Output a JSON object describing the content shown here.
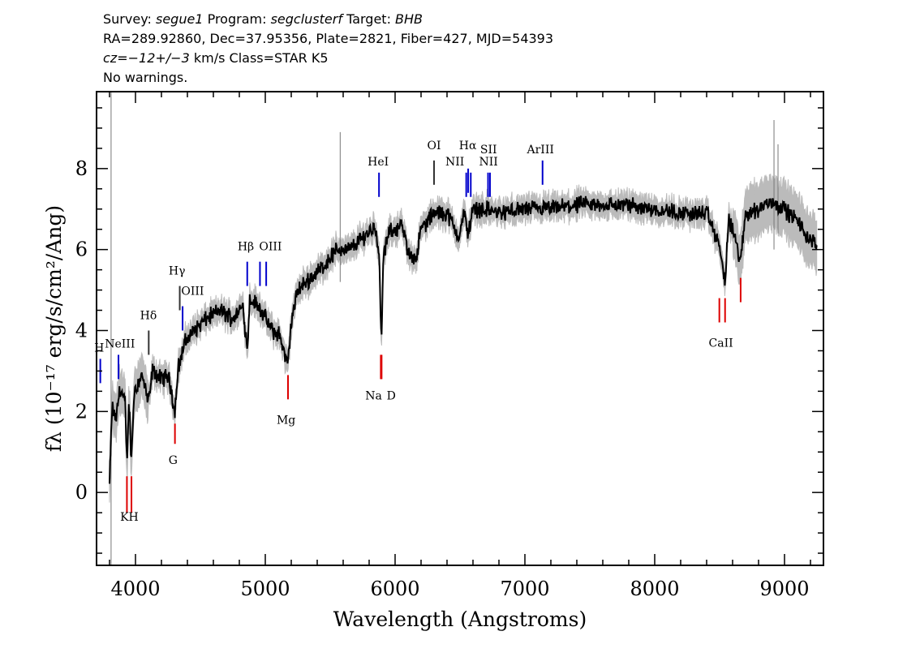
{
  "header": {
    "survey_label": "Survey:",
    "survey": "segue1",
    "program_label": "Program:",
    "program": "segclusterf",
    "target_label": "Target:",
    "target": "BHB",
    "line2": "RA=289.92860, Dec=37.95356, Plate=2821, Fiber=427, MJD=54393",
    "cz_label": "cz=",
    "cz_value": "−12+/−3",
    "cz_rest": " km/s Class=STAR K5",
    "warnings": "No warnings."
  },
  "chart_data": {
    "type": "line",
    "xlabel": "Wavelength (Angstroms)",
    "ylabel": "fλ (10⁻¹⁷ erg/s/cm²/Ang)",
    "xlim": [
      3700,
      9300
    ],
    "ylim": [
      -1.8,
      9.9
    ],
    "x_ticks": [
      4000,
      5000,
      6000,
      7000,
      8000,
      9000
    ],
    "y_ticks": [
      0,
      2,
      4,
      6,
      8
    ],
    "grid": false,
    "colors": {
      "flux": "#000000",
      "error": "#bbbbbb",
      "emission": "#0000cc",
      "absorption": "#dd0000",
      "sky": "#777777"
    },
    "flux_knots": [
      [
        3800,
        0.2
      ],
      [
        3820,
        2.1
      ],
      [
        3850,
        1.8
      ],
      [
        3880,
        2.6
      ],
      [
        3900,
        2.4
      ],
      [
        3920,
        2.2
      ],
      [
        3934,
        0.7
      ],
      [
        3950,
        2.3
      ],
      [
        3968,
        0.8
      ],
      [
        3990,
        2.5
      ],
      [
        4050,
        2.9
      ],
      [
        4101,
        2.2
      ],
      [
        4130,
        3.0
      ],
      [
        4200,
        2.8
      ],
      [
        4250,
        2.9
      ],
      [
        4280,
        2.5
      ],
      [
        4300,
        1.9
      ],
      [
        4330,
        3.1
      ],
      [
        4380,
        3.7
      ],
      [
        4450,
        4.0
      ],
      [
        4550,
        4.3
      ],
      [
        4650,
        4.5
      ],
      [
        4750,
        4.3
      ],
      [
        4830,
        4.6
      ],
      [
        4861,
        3.5
      ],
      [
        4880,
        4.8
      ],
      [
        4950,
        4.6
      ],
      [
        5050,
        4.0
      ],
      [
        5110,
        3.9
      ],
      [
        5150,
        3.4
      ],
      [
        5172,
        3.1
      ],
      [
        5200,
        4.2
      ],
      [
        5250,
        5.0
      ],
      [
        5350,
        5.3
      ],
      [
        5450,
        5.6
      ],
      [
        5550,
        6.0
      ],
      [
        5650,
        6.0
      ],
      [
        5750,
        6.3
      ],
      [
        5850,
        6.6
      ],
      [
        5880,
        5.6
      ],
      [
        5893,
        3.7
      ],
      [
        5910,
        5.8
      ],
      [
        5950,
        6.4
      ],
      [
        6050,
        6.6
      ],
      [
        6103,
        5.9
      ],
      [
        6162,
        5.8
      ],
      [
        6200,
        6.5
      ],
      [
        6300,
        6.9
      ],
      [
        6400,
        6.9
      ],
      [
        6495,
        6.3
      ],
      [
        6530,
        6.9
      ],
      [
        6563,
        6.4
      ],
      [
        6600,
        7.0
      ],
      [
        6700,
        7.0
      ],
      [
        6800,
        6.9
      ],
      [
        7000,
        7.0
      ],
      [
        7200,
        7.0
      ],
      [
        7400,
        7.1
      ],
      [
        7600,
        7.1
      ],
      [
        7800,
        7.1
      ],
      [
        8000,
        7.0
      ],
      [
        8200,
        6.9
      ],
      [
        8400,
        6.9
      ],
      [
        8498,
        6.1
      ],
      [
        8542,
        5.2
      ],
      [
        8570,
        6.7
      ],
      [
        8600,
        6.5
      ],
      [
        8662,
        5.7
      ],
      [
        8700,
        6.9
      ],
      [
        8800,
        7.0
      ],
      [
        8900,
        7.2
      ],
      [
        9000,
        7.0
      ],
      [
        9100,
        6.7
      ],
      [
        9200,
        6.2
      ],
      [
        9250,
        6.1
      ]
    ],
    "emission_lines": [
      {
        "label": "H",
        "x": 3729
      },
      {
        "label": "NeIII",
        "x": 3869
      },
      {
        "label": "Hδ",
        "x": 4102
      },
      {
        "label": "Hγ",
        "x": 4341
      },
      {
        "label": "OIII",
        "x": 4363
      },
      {
        "label": "Hβ",
        "x": 4861
      },
      {
        "label": "OIII",
        "x": 4959
      },
      {
        "label": "OIII",
        "x": 5007
      },
      {
        "label": "HeI",
        "x": 5876
      },
      {
        "label": "OI",
        "x": 6300
      },
      {
        "label": "NII",
        "x": 6548
      },
      {
        "label": "Hα",
        "x": 6563
      },
      {
        "label": "NII",
        "x": 6583
      },
      {
        "label": "SII",
        "x": 6716
      },
      {
        "label": "SII",
        "x": 6731
      },
      {
        "label": "ArIII",
        "x": 7136
      }
    ],
    "absorption_lines": [
      {
        "label": "K",
        "x": 3934
      },
      {
        "label": "H",
        "x": 3969
      },
      {
        "label": "G",
        "x": 4304
      },
      {
        "label": "Mg",
        "x": 5175
      },
      {
        "label": "Na",
        "x": 5890
      },
      {
        "label": "D",
        "x": 5896
      },
      {
        "label": "CaII",
        "x": 8498
      },
      {
        "label": "CaII",
        "x": 8542
      },
      {
        "label": "CaII",
        "x": 8662
      }
    ]
  }
}
